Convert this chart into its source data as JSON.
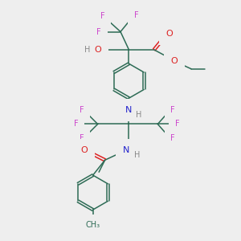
{
  "bg_color": "#eeeeee",
  "bond_color": "#2d6b55",
  "F_color": "#cc44cc",
  "O_color": "#dd2222",
  "N_color": "#2222cc",
  "H_color": "#888888",
  "figsize": [
    3.0,
    3.0
  ],
  "dpi": 100,
  "xlim": [
    0,
    10
  ],
  "ylim": [
    0,
    10
  ]
}
